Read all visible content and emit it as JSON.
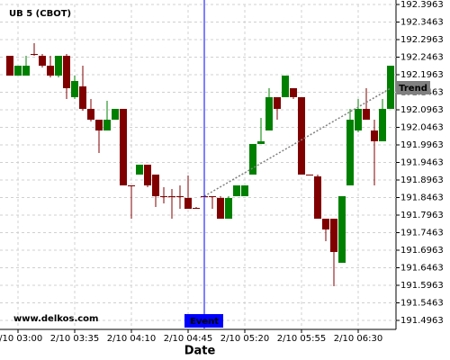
{
  "chart_data": {
    "type": "candlestick",
    "title": "UB 5 (CBOT)",
    "x_label": "Date",
    "watermark": "www.delkos.com",
    "categories": [
      null,
      "2/10 03:00",
      null,
      null,
      null,
      null,
      null,
      null,
      "2/10 03:35",
      null,
      null,
      null,
      null,
      null,
      null,
      "2/10 04:10",
      null,
      null,
      null,
      null,
      null,
      null,
      "2/10 04:45",
      null,
      null,
      null,
      null,
      null,
      null,
      "2/10 05:20",
      null,
      null,
      null,
      null,
      null,
      null,
      "2/10 05:55",
      null,
      null,
      null,
      null,
      null,
      null,
      "2/10 06:30",
      null,
      null,
      null,
      null
    ],
    "open": [
      192.2501,
      192.1937,
      192.1937,
      192.2553,
      192.2501,
      192.2219,
      192.1937,
      192.2501,
      192.1322,
      192.163,
      192.0989,
      192.0681,
      192.0373,
      192.0681,
      192.0989,
      191.8809,
      191.9117,
      191.9399,
      191.9117,
      191.8501,
      191.8501,
      191.8501,
      191.845,
      191.8168,
      191.8501,
      191.8501,
      191.845,
      191.786,
      191.8501,
      191.8501,
      191.9117,
      191.9989,
      192.0373,
      192.1322,
      192.1322,
      192.1578,
      192.1322,
      191.9117,
      191.9066,
      191.786,
      191.786,
      191.6604,
      191.8809,
      192.0373,
      192.0989,
      192.0373,
      192.0066,
      192.0989
    ],
    "high": [
      192.2501,
      192.2219,
      192.2501,
      192.286,
      192.2553,
      192.2501,
      192.2501,
      192.2553,
      192.1937,
      192.2219,
      192.1271,
      192.0681,
      192.1219,
      192.0989,
      192.0989,
      191.8809,
      191.9399,
      191.9399,
      191.9117,
      191.8758,
      191.8707,
      191.8809,
      191.9091,
      191.8194,
      191.8501,
      191.8501,
      191.8501,
      191.8501,
      191.8809,
      191.8809,
      191.9989,
      192.0732,
      192.1578,
      192.1322,
      192.1937,
      192.1578,
      192.1322,
      191.9117,
      191.9117,
      191.786,
      191.786,
      191.8501,
      192.0989,
      192.1271,
      192.1578,
      192.0681,
      192.1271,
      192.2219
    ],
    "low": [
      192.1937,
      192.1937,
      192.1937,
      192.2501,
      192.2168,
      192.1886,
      192.1886,
      192.1271,
      192.1271,
      192.0937,
      192.063,
      191.9732,
      192.0373,
      192.0681,
      191.8809,
      191.786,
      191.9117,
      191.8758,
      191.8194,
      191.8296,
      191.786,
      191.8142,
      191.8142,
      191.8142,
      191.845,
      191.8142,
      191.786,
      191.786,
      191.8501,
      191.8501,
      191.9117,
      191.9989,
      192.0373,
      192.0681,
      192.1322,
      192.1271,
      191.9117,
      191.9091,
      191.786,
      191.7219,
      191.5937,
      191.6604,
      191.8809,
      192.0322,
      192.0681,
      191.8809,
      192.0066,
      192.0989
    ],
    "close": [
      192.1937,
      192.2219,
      192.2219,
      192.2553,
      192.2219,
      192.1937,
      192.2501,
      192.1578,
      192.1784,
      192.0989,
      192.0681,
      192.0373,
      192.0681,
      192.0989,
      191.8809,
      191.8809,
      191.9399,
      191.8809,
      191.8501,
      191.8501,
      191.8501,
      191.8501,
      191.8142,
      191.8168,
      191.8501,
      191.8501,
      191.786,
      191.845,
      191.8809,
      191.8809,
      191.9989,
      192.0066,
      192.1322,
      192.0989,
      192.1937,
      192.1322,
      191.9117,
      191.9117,
      191.786,
      191.7553,
      191.6912,
      191.8501,
      192.0681,
      192.0989,
      192.0681,
      192.0066,
      192.0989,
      192.2219
    ],
    "up_color": "#008000",
    "down_color": "#800000",
    "ylim": [
      191.4732,
      192.3963
    ],
    "yticks": [
      191.4963,
      191.5463,
      191.5963,
      191.6463,
      191.6963,
      191.7463,
      191.7963,
      191.8463,
      191.8963,
      191.9463,
      191.9963,
      192.0463,
      192.0963,
      192.1463,
      192.1963,
      192.2463,
      192.2963,
      192.3463,
      192.3963
    ],
    "grid": true,
    "event": {
      "label": "Event",
      "index": 24,
      "color": "#0000ff"
    },
    "trend": {
      "label": "Trend",
      "x": [
        24,
        47
      ],
      "y": [
        191.8501,
        192.1578
      ],
      "color": "#808080"
    }
  }
}
